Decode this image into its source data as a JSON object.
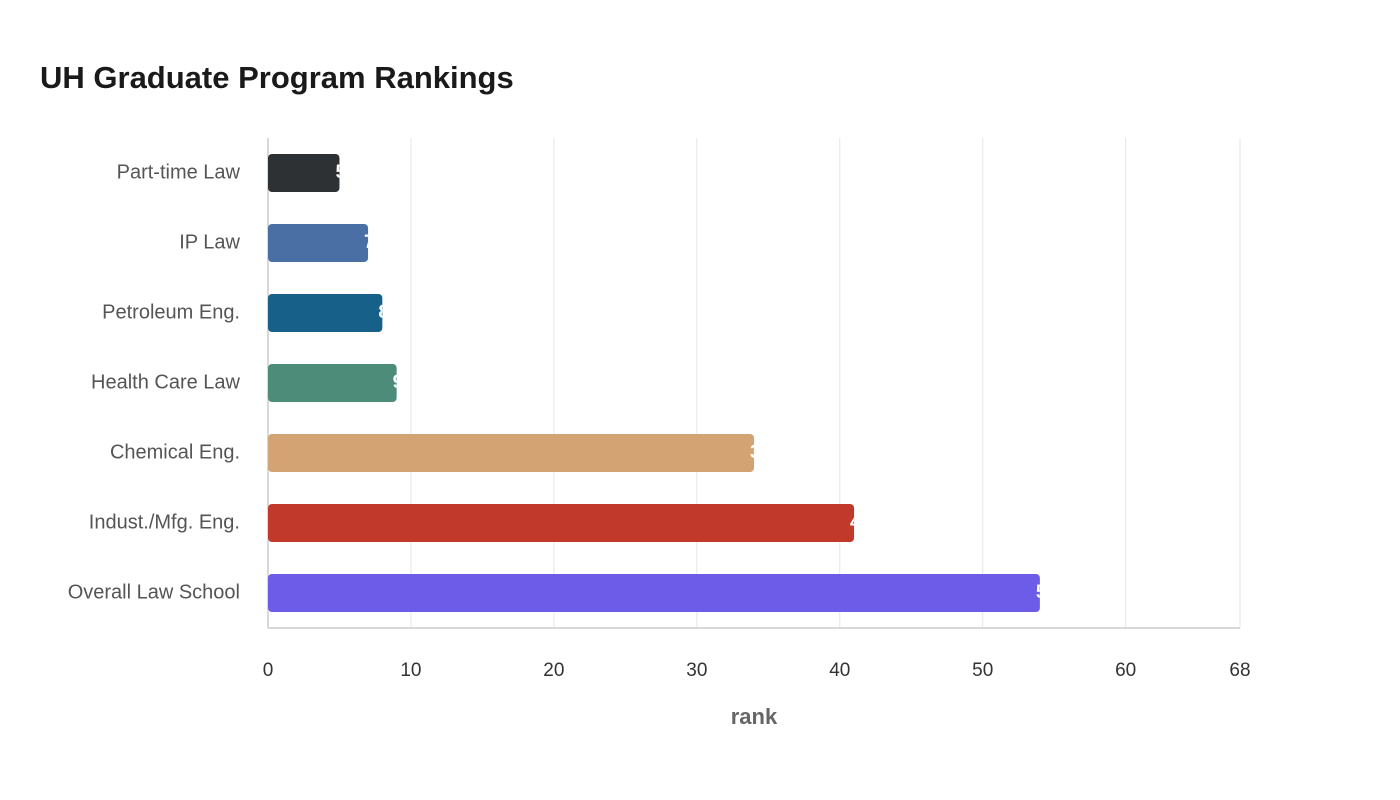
{
  "chart_data": {
    "type": "hbar",
    "title": "UH Graduate Program Rankings",
    "categories": [
      "Part-time Law",
      "IP Law",
      "Petroleum Eng.",
      "Health Care Law",
      "Chemical Eng.",
      "Indust./Mfg. Eng.",
      "Overall Law School"
    ],
    "values": [
      5,
      7,
      8,
      9,
      34,
      41,
      54
    ],
    "colors": [
      "#2e3133",
      "#4a6fa5",
      "#17608a",
      "#4e8c7a",
      "#d4a373",
      "#c0392b",
      "#6c5ce7"
    ],
    "x_label": "rank",
    "xlim": [
      0,
      68
    ],
    "xticks": [
      0,
      10,
      20,
      30,
      40,
      50,
      60,
      68
    ],
    "grid": true
  }
}
